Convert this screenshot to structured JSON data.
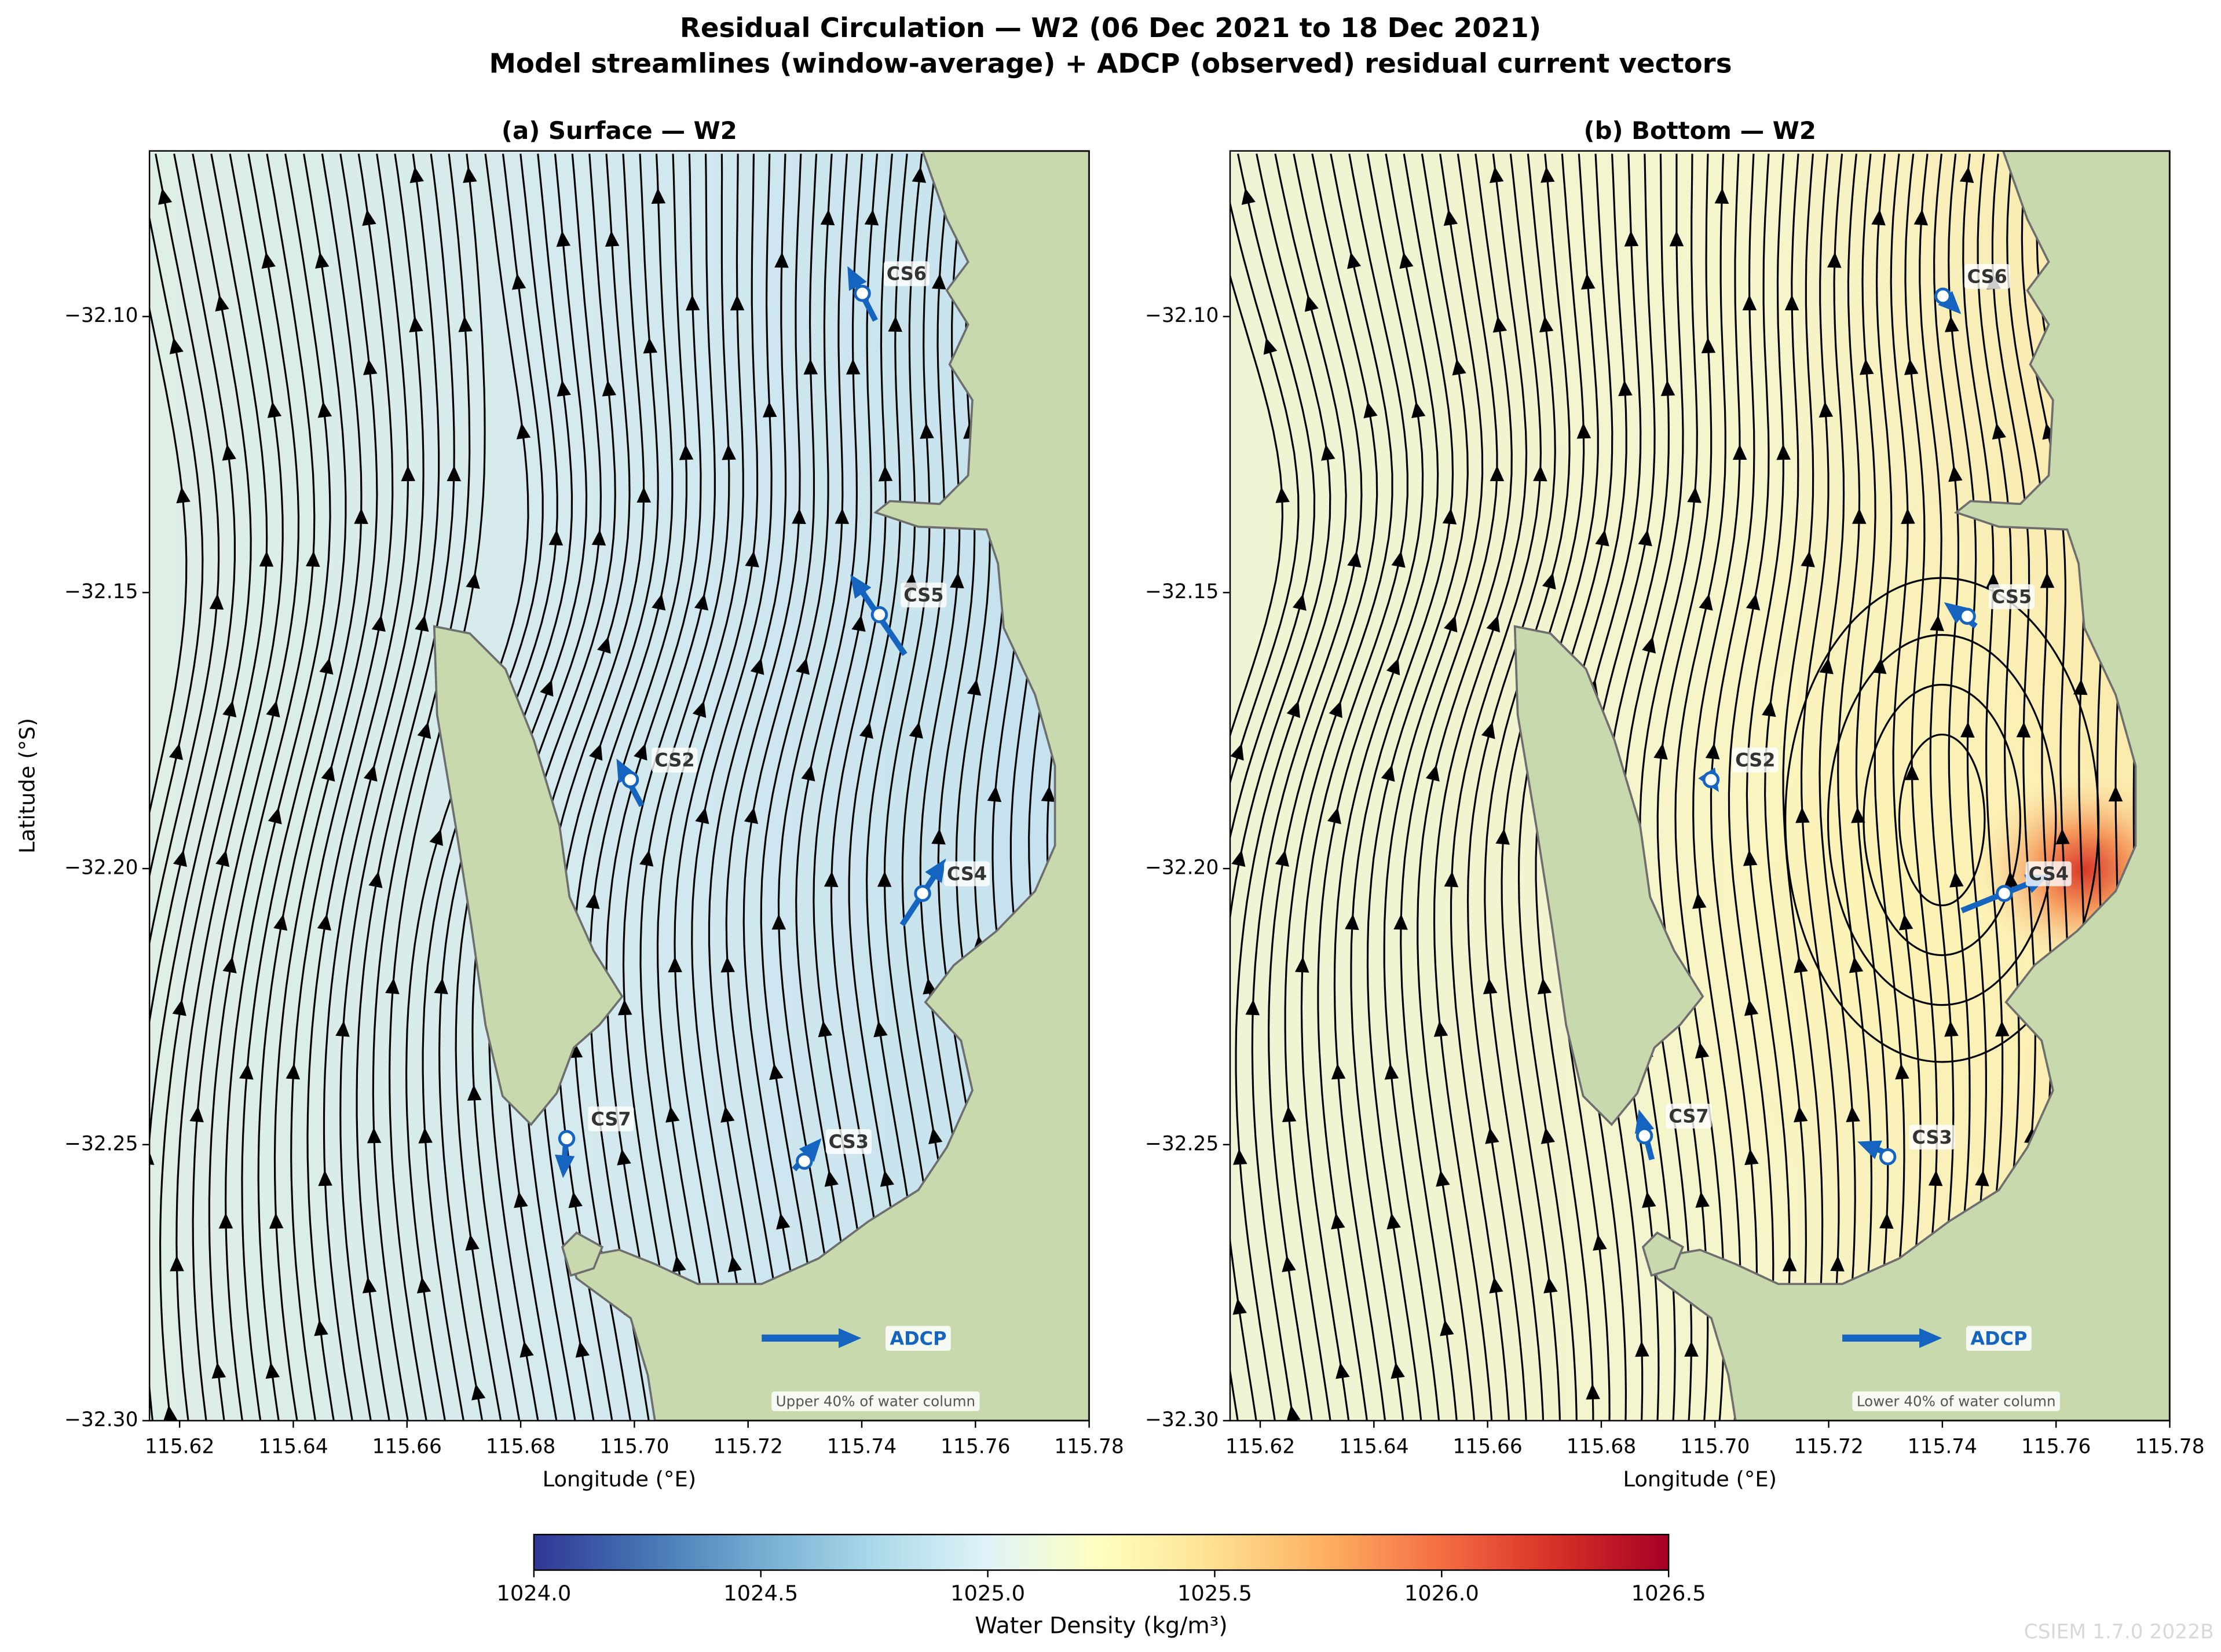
{
  "title": "Residual Circulation — W2  (06 Dec 2021 to 18 Dec 2021)",
  "subtitle": "Model streamlines (window-average) + ADCP (observed) residual current vectors",
  "chart_data": [
    {
      "type": "streamplot",
      "title": "(a) Surface — W2",
      "xlabel": "Longitude (°E)",
      "ylabel": "Latitude (°S)",
      "annotation": "Upper 40% of water column",
      "legend_label": "ADCP",
      "xlim": [
        115.6147,
        115.78
      ],
      "ylim": [
        -32.3,
        -32.07
      ],
      "xticks": [
        115.62,
        115.64,
        115.66,
        115.68,
        {
          "value": 115.7,
          "label": "115.70"
        },
        115.72,
        115.74,
        115.76,
        115.78
      ],
      "yticks": [
        {
          "value": -32.1,
          "label": "−32.10"
        },
        {
          "value": -32.15,
          "label": "−32.15"
        },
        {
          "value": -32.2,
          "label": "−32.20"
        },
        {
          "value": -32.25,
          "label": "−32.25"
        },
        {
          "value": -32.3,
          "label": "−32.30"
        }
      ],
      "color": "#1565c0",
      "stations": [
        {
          "name": "CS6",
          "position": [
            115.7401,
            -32.0958
          ],
          "arrow_start": [
            115.7424,
            -32.1007
          ],
          "arrow_end": [
            115.7384,
            -32.0927
          ]
        },
        {
          "name": "CS5",
          "position": [
            115.7431,
            -32.154
          ],
          "arrow_start": [
            115.7476,
            -32.1612
          ],
          "arrow_end": [
            115.7391,
            -32.1484
          ]
        },
        {
          "name": "CS2",
          "position": [
            115.6993,
            -32.1839
          ],
          "arrow_start": [
            115.7013,
            -32.1886
          ],
          "arrow_end": [
            115.6978,
            -32.1819
          ]
        },
        {
          "name": "CS4",
          "position": [
            115.7507,
            -32.2045
          ],
          "arrow_start": [
            115.7471,
            -32.2102
          ],
          "arrow_end": [
            115.7537,
            -32.1999
          ]
        },
        {
          "name": "CS3",
          "position": [
            115.7299,
            -32.253
          ],
          "arrow_start": [
            115.7281,
            -32.2545
          ],
          "arrow_end": [
            115.7316,
            -32.2504
          ]
        },
        {
          "name": "CS7",
          "position": [
            115.6881,
            -32.2489
          ],
          "arrow_start": [
            115.6881,
            -32.2476
          ],
          "arrow_end": [
            115.6876,
            -32.254
          ]
        }
      ]
    },
    {
      "type": "streamplot",
      "title": "(b) Bottom — W2",
      "xlabel": "Longitude (°E)",
      "annotation": "Lower 40% of water column",
      "legend_label": "ADCP",
      "xlim": [
        115.6147,
        115.78
      ],
      "ylim": [
        -32.3,
        -32.07
      ],
      "xticks": [
        115.62,
        115.64,
        115.66,
        115.68,
        {
          "value": 115.7,
          "label": "115.70"
        },
        115.72,
        115.74,
        115.76,
        115.78
      ],
      "yticks": [
        {
          "value": -32.1,
          "label": "−32.10"
        },
        {
          "value": -32.15,
          "label": "−32.15"
        },
        {
          "value": -32.2,
          "label": "−32.20"
        },
        {
          "value": -32.25,
          "label": "−32.25"
        },
        {
          "value": -32.3,
          "label": "−32.30"
        }
      ],
      "color": "#1565c0",
      "stations": [
        {
          "name": "CS6",
          "position": [
            115.7401,
            -32.0963
          ],
          "arrow_start": [
            115.7394,
            -32.0955
          ],
          "arrow_end": [
            115.7419,
            -32.0981
          ]
        },
        {
          "name": "CS5",
          "position": [
            115.7444,
            -32.1543
          ],
          "arrow_start": [
            115.7459,
            -32.1561
          ],
          "arrow_end": [
            115.7419,
            -32.153
          ]
        },
        {
          "name": "CS2",
          "position": [
            115.6993,
            -32.1839
          ],
          "arrow_start": [
            115.6991,
            -32.1836
          ],
          "arrow_end": [
            115.6996,
            -32.1844
          ]
        },
        {
          "name": "CS4",
          "position": [
            115.7509,
            -32.2045
          ],
          "arrow_start": [
            115.7434,
            -32.2076
          ],
          "arrow_end": [
            115.7569,
            -32.202
          ]
        },
        {
          "name": "CS3",
          "position": [
            115.7304,
            -32.2522
          ],
          "arrow_start": [
            115.7314,
            -32.252
          ],
          "arrow_end": [
            115.7269,
            -32.2502
          ]
        },
        {
          "name": "CS7",
          "position": [
            115.6876,
            -32.2484
          ],
          "arrow_start": [
            115.6889,
            -32.2527
          ],
          "arrow_end": [
            115.6871,
            -32.2456
          ]
        }
      ]
    }
  ],
  "colorbar": {
    "label": "Water Density (kg/m³)",
    "lim": [
      1024,
      1026.5
    ],
    "colormap": "RdYlBu_r",
    "ticks": [
      {
        "value": 1024,
        "label": "1024.0"
      },
      {
        "value": 1024.5,
        "label": "1024.5"
      },
      {
        "value": 1025,
        "label": "1025.0"
      },
      {
        "value": 1025.5,
        "label": "1025.5"
      },
      {
        "value": 1026,
        "label": "1026.0"
      },
      {
        "value": 1026.5,
        "label": "1026.5"
      }
    ]
  },
  "footer": "CSIEM 1.7.0 2022B"
}
